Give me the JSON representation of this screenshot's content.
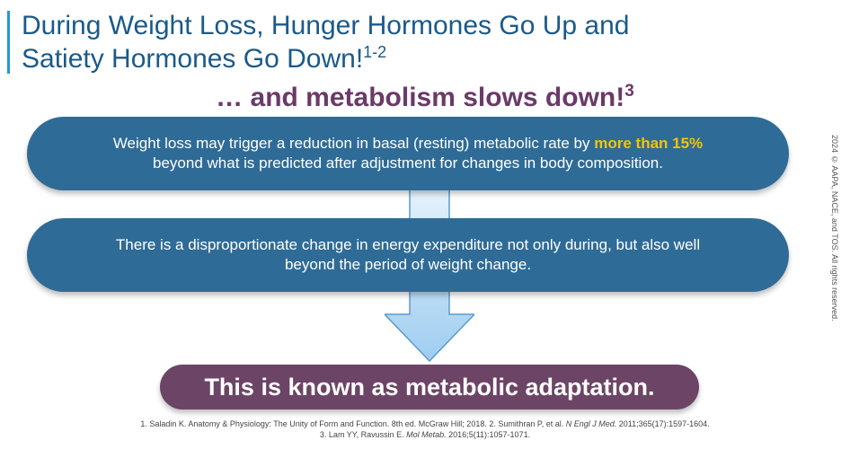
{
  "header": {
    "title_line1": "During Weight Loss, Hunger Hormones Go Up and",
    "title_line2": "Satiety Hormones Go Down!",
    "title_sup": "1-2",
    "subtitle": "… and metabolism slows down!",
    "subtitle_sup": "3"
  },
  "point1": {
    "text_before": "Weight loss may trigger a reduction in basal (resting) metabolic rate by ",
    "highlight": "more than 15%",
    "line2": "beyond what is predicted after adjustment for changes in body composition."
  },
  "point2": {
    "line1": "There is a disproportionate change in energy expenditure not only during, but also well",
    "line2": "beyond the period of weight change."
  },
  "conclusion": "This is known as metabolic adaptation.",
  "copyright": "2024 © AAPA, NACE, and TOS. All rights reserved.",
  "references": {
    "r1_prefix": "1. Saladin K. Anatomy & Physiology: The Unity of Form and Function. 8th ed. McGraw Hill; 2018. 2. Sumithran P, et al. ",
    "r1_journal": "N Engl J Med.",
    "r1_suffix": " 2011;365(17):1597-1604.",
    "r2_prefix": "3. Lam YY, Ravussin E. ",
    "r2_journal": "Mol Metab.",
    "r2_suffix": " 2016;5(11):1057-1071."
  },
  "colors": {
    "title": "#1a5a8a",
    "subtitle": "#6a3a68",
    "pill": "#2f6b97",
    "highlight": "#f5c400",
    "conclusion": "#6c4466",
    "arrow": "#a9d4f2"
  }
}
